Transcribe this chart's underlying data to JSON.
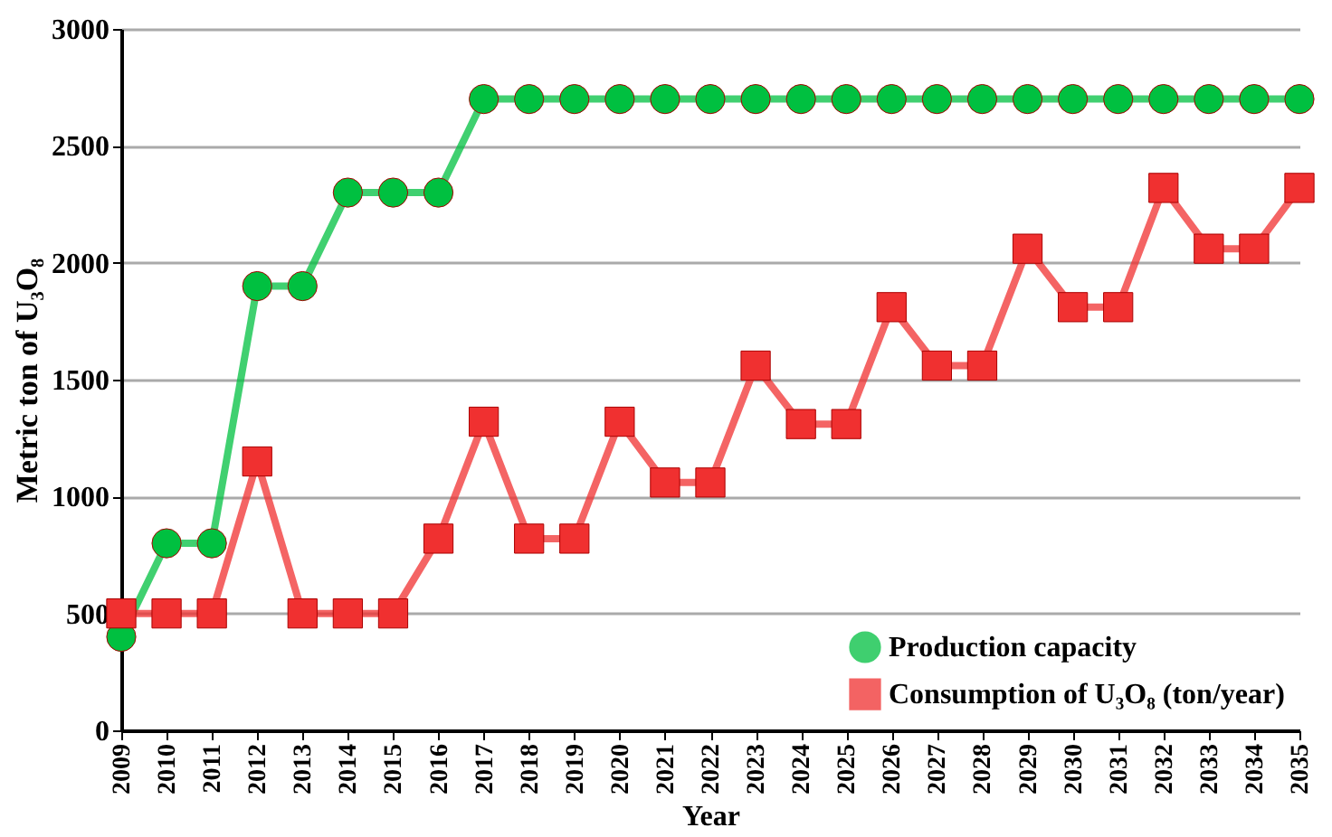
{
  "chart_data": {
    "type": "line",
    "xlabel": "Year",
    "ylabel": "Metric ton of U₃O₈",
    "categories": [
      "2009",
      "2010",
      "2011",
      "2012",
      "2013",
      "2014",
      "2015",
      "2016",
      "2017",
      "2018",
      "2019",
      "2020",
      "2021",
      "2022",
      "2023",
      "2024",
      "2025",
      "2026",
      "2027",
      "2028",
      "2029",
      "2030",
      "2031",
      "2032",
      "2033",
      "2034",
      "2035"
    ],
    "series": [
      {
        "name": "Production capacity",
        "color": "#00c040",
        "marker": "circle",
        "values": [
          400,
          800,
          800,
          1900,
          1900,
          2300,
          2300,
          2300,
          2700,
          2700,
          2700,
          2700,
          2700,
          2700,
          2700,
          2700,
          2700,
          2700,
          2700,
          2700,
          2700,
          2700,
          2700,
          2700,
          2700,
          2700,
          2700
        ]
      },
      {
        "name": "Consumption of U₃O₈ (ton/year)",
        "color": "#f03030",
        "marker": "square",
        "values": [
          500,
          500,
          500,
          1150,
          500,
          500,
          500,
          820,
          1320,
          820,
          820,
          1320,
          1060,
          1060,
          1560,
          1310,
          1310,
          1810,
          1560,
          1560,
          2060,
          1810,
          1810,
          2320,
          2060,
          2060,
          2320
        ]
      }
    ],
    "ylim": [
      0,
      3000
    ],
    "yticks": [
      0,
      500,
      1000,
      1500,
      2000,
      2500,
      3000
    ],
    "grid": "y",
    "legend": "bottom right"
  }
}
